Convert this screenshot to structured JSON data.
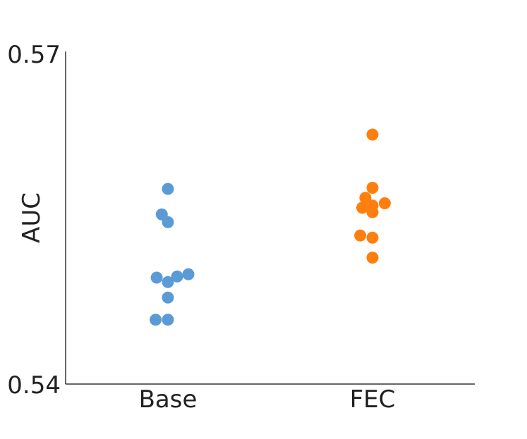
{
  "chart_data": {
    "type": "scatter",
    "subtype": "strip",
    "title": "",
    "xlabel": "",
    "ylabel": "AUC",
    "ylim": [
      0.54,
      0.57
    ],
    "yticks": [
      "0.57",
      "0.54"
    ],
    "categories": [
      "Base",
      "FEC"
    ],
    "grid": false,
    "series": [
      {
        "category": "Base",
        "color": "#5b9bd5",
        "points": [
          {
            "x_jitter": 0.0,
            "y": 0.5576
          },
          {
            "x_jitter": -0.06,
            "y": 0.5553
          },
          {
            "x_jitter": 0.0,
            "y": 0.5546
          },
          {
            "x_jitter": -0.11,
            "y": 0.5496
          },
          {
            "x_jitter": 0.0,
            "y": 0.5492
          },
          {
            "x_jitter": 0.09,
            "y": 0.5497
          },
          {
            "x_jitter": 0.2,
            "y": 0.5499
          },
          {
            "x_jitter": 0.0,
            "y": 0.5478
          },
          {
            "x_jitter": -0.12,
            "y": 0.5458
          },
          {
            "x_jitter": 0.0,
            "y": 0.5458
          }
        ]
      },
      {
        "category": "FEC",
        "color": "#ff7f0e",
        "points": [
          {
            "x_jitter": 0.0,
            "y": 0.5625
          },
          {
            "x_jitter": 0.0,
            "y": 0.5577
          },
          {
            "x_jitter": -0.07,
            "y": 0.5568
          },
          {
            "x_jitter": 0.0,
            "y": 0.5561
          },
          {
            "x_jitter": 0.12,
            "y": 0.5563
          },
          {
            "x_jitter": -0.1,
            "y": 0.5559
          },
          {
            "x_jitter": 0.0,
            "y": 0.5555
          },
          {
            "x_jitter": -0.12,
            "y": 0.5534
          },
          {
            "x_jitter": 0.0,
            "y": 0.5532
          },
          {
            "x_jitter": 0.0,
            "y": 0.5514
          }
        ]
      }
    ]
  }
}
